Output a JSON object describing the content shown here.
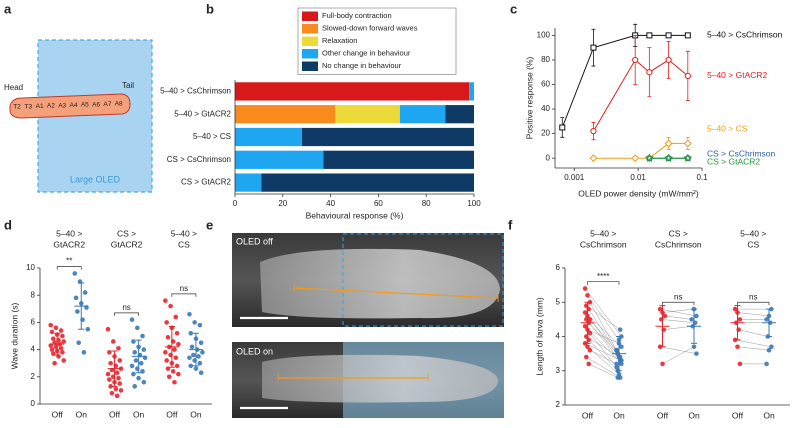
{
  "panel_labels": [
    "a",
    "b",
    "c",
    "d",
    "e",
    "f"
  ],
  "diagram": {
    "head": "Head",
    "tail": "Tail",
    "segments": [
      "T2",
      "T3",
      "A1",
      "A2",
      "A3",
      "A4",
      "A5",
      "A6",
      "A7",
      "A8"
    ],
    "oled_label": "Large OLED"
  },
  "images": {
    "top_label": "OLED off",
    "bottom_label": "OLED on"
  },
  "chart_data": [
    {
      "type": "stacked-barh",
      "categories": [
        "5–40 > CsChrimson",
        "5–40 > GtACR2",
        "5–40 > CS",
        "CS > CsChrimson",
        "CS > GtACR2"
      ],
      "series": [
        {
          "name": "Full-body contraction",
          "color": "#d7191c",
          "values": [
            98,
            0,
            0,
            0,
            0
          ]
        },
        {
          "name": "Slowed-down forward waves",
          "color": "#f98a1e",
          "values": [
            0,
            42,
            0,
            0,
            0
          ]
        },
        {
          "name": "Relaxation",
          "color": "#ecd93a",
          "values": [
            0,
            27,
            0,
            0,
            0
          ]
        },
        {
          "name": "Other change in behaviour",
          "color": "#1ea7f0",
          "values": [
            2,
            19,
            28,
            37,
            11
          ]
        },
        {
          "name": "No change in behaviour",
          "color": "#0f3a66",
          "values": [
            0,
            12,
            72,
            63,
            89
          ]
        }
      ],
      "xlim": [
        0,
        100
      ],
      "xticks": [
        0,
        20,
        40,
        60,
        80,
        100
      ],
      "xlabel": "Behavioural response (%)",
      "legend": "top"
    },
    {
      "type": "line",
      "xscale": "log",
      "xlabel": "OLED power density (mW/mm²)",
      "ylabel": "Positive response (%)",
      "xlim": [
        0.0005,
        0.1
      ],
      "xticks": [
        0.001,
        0.01,
        0.1
      ],
      "ylim": [
        -8,
        106
      ],
      "yticks": [
        0,
        20,
        40,
        60,
        80,
        100
      ],
      "series": [
        {
          "name": "5–40 > CsChrimson",
          "color": "#111111",
          "marker": "square",
          "x": [
            0.00065,
            0.002,
            0.009,
            0.015,
            0.03,
            0.06
          ],
          "values": [
            25,
            90,
            100,
            100,
            100,
            100
          ],
          "errors": [
            8,
            15,
            9,
            0,
            0,
            0
          ]
        },
        {
          "name": "5–40 > GtACR2",
          "color": "#e0201c",
          "marker": "circle",
          "x": [
            0.002,
            0.009,
            0.015,
            0.03,
            0.06
          ],
          "values": [
            22,
            80,
            70,
            80,
            67
          ],
          "errors": [
            7,
            20,
            20,
            15,
            20
          ]
        },
        {
          "name": "5–40 > CS",
          "color": "#f39a1b",
          "marker": "diamond",
          "x": [
            0.002,
            0.009,
            0.015,
            0.03,
            0.06
          ],
          "values": [
            0,
            0,
            0,
            12,
            12
          ],
          "errors": [
            0,
            0,
            0,
            5,
            5
          ]
        },
        {
          "name": "CS > CsChrimson",
          "color": "#2d5fa8",
          "marker": "circle",
          "x": [
            0.015,
            0.03,
            0.06
          ],
          "values": [
            0,
            0,
            0
          ],
          "errors": [
            0,
            0,
            0
          ]
        },
        {
          "name": "CS > GtACR2",
          "color": "#1f9a2e",
          "marker": "star",
          "x": [
            0.015,
            0.03,
            0.06
          ],
          "values": [
            0,
            0,
            0
          ],
          "errors": [
            0,
            0,
            0
          ]
        }
      ]
    },
    {
      "type": "strip",
      "ylabel": "Wave duration (s)",
      "ylim": [
        0,
        10
      ],
      "yticks": [
        0,
        2,
        4,
        6,
        8,
        10
      ],
      "groups": [
        {
          "title": [
            "5–40 >",
            "GtACR2"
          ],
          "significance": "**",
          "conditions": [
            {
              "name": "Off",
              "color": "#e8242b",
              "values": [
                5.8,
                5.6,
                5.4,
                5.3,
                5.1,
                5.0,
                4.8,
                4.7,
                4.6,
                4.5,
                4.4,
                4.3,
                4.2,
                4.1,
                4.0,
                3.9,
                3.8,
                3.7,
                3.5,
                3.2,
                3.0
              ],
              "mean": 4.4,
              "sd": 0.8
            },
            {
              "name": "On",
              "color": "#3a78b5",
              "values": [
                9.6,
                9.0,
                8.2,
                7.8,
                7.4,
                7.1,
                6.8,
                6.2,
                5.5,
                4.5,
                3.8
              ],
              "mean": 7.2,
              "sd": 1.7
            }
          ]
        },
        {
          "title": [
            "CS >",
            "GtACR2"
          ],
          "significance": "ns",
          "conditions": [
            {
              "name": "Off",
              "color": "#e8242b",
              "values": [
                5.5,
                4.6,
                4.1,
                3.8,
                3.5,
                3.2,
                3.0,
                2.8,
                2.6,
                2.5,
                2.3,
                2.2,
                2.0,
                1.9,
                1.8,
                1.6,
                1.5,
                1.3,
                1.1,
                1.0,
                0.8,
                0.6
              ],
              "mean": 2.6,
              "sd": 1.3
            },
            {
              "name": "On",
              "color": "#3a78b5",
              "values": [
                6.2,
                5.6,
                5.0,
                4.6,
                4.2,
                4.0,
                3.8,
                3.6,
                3.4,
                3.2,
                3.0,
                2.8,
                2.6,
                2.4,
                2.2,
                1.9,
                1.6,
                1.3
              ],
              "mean": 3.5,
              "sd": 1.2
            }
          ]
        },
        {
          "title": [
            "5–40 >",
            "CS"
          ],
          "significance": "ns",
          "conditions": [
            {
              "name": "Off",
              "color": "#e8242b",
              "values": [
                7.6,
                7.2,
                6.4,
                6.0,
                5.6,
                5.2,
                4.9,
                4.6,
                4.4,
                4.2,
                4.0,
                3.8,
                3.6,
                3.4,
                3.2,
                3.0,
                2.8,
                2.6,
                2.4,
                2.2,
                2.0,
                1.6
              ],
              "mean": 4.2,
              "sd": 1.5
            },
            {
              "name": "On",
              "color": "#3a78b5",
              "values": [
                6.6,
                6.0,
                5.8,
                5.2,
                4.8,
                4.5,
                4.2,
                4.0,
                3.8,
                3.6,
                3.5,
                3.4,
                3.2,
                3.0,
                2.8,
                2.6,
                2.3
              ],
              "mean": 4.0,
              "sd": 1.2
            }
          ]
        }
      ]
    },
    {
      "type": "paired",
      "ylabel": "Length of larva (mm)",
      "ylim": [
        2,
        6
      ],
      "yticks": [
        2,
        3,
        4,
        5,
        6
      ],
      "groups": [
        {
          "title": [
            "5–40 >",
            "CsChrimson"
          ],
          "significance": "****",
          "conditions": [
            {
              "name": "Off",
              "color": "#e8242b",
              "values": [
                5.4,
                5.2,
                5.0,
                4.9,
                4.8,
                4.7,
                4.6,
                4.5,
                4.5,
                4.4,
                4.3,
                4.2,
                4.1,
                4.0,
                3.9,
                3.8,
                3.7,
                3.6,
                3.4,
                3.2
              ],
              "mean": 4.4,
              "sd": 0.6
            },
            {
              "name": "On",
              "color": "#3a78b5",
              "values": [
                4.0,
                3.9,
                3.6,
                4.2,
                3.5,
                3.7,
                3.4,
                3.6,
                3.3,
                3.5,
                3.2,
                3.8,
                3.1,
                3.4,
                3.0,
                3.3,
                2.9,
                3.2,
                2.8,
                2.8
              ],
              "mean": 3.5,
              "sd": 0.5
            }
          ]
        },
        {
          "title": [
            "CS >",
            "CsChrimson"
          ],
          "significance": "ns",
          "conditions": [
            {
              "name": "Off",
              "color": "#e8242b",
              "values": [
                4.8,
                4.7,
                4.6,
                4.5,
                4.2,
                3.7,
                3.2
              ],
              "mean": 4.3,
              "sd": 0.6
            },
            {
              "name": "On",
              "color": "#3a78b5",
              "values": [
                4.6,
                4.8,
                4.5,
                4.4,
                4.3,
                3.5,
                3.7
              ],
              "mean": 4.3,
              "sd": 0.5
            }
          ]
        },
        {
          "title": [
            "5–40 >",
            "CS"
          ],
          "significance": "ns",
          "conditions": [
            {
              "name": "Off",
              "color": "#e8242b",
              "values": [
                4.8,
                4.7,
                4.5,
                4.4,
                4.2,
                3.9,
                3.7,
                3.2
              ],
              "mean": 4.4,
              "sd": 0.5
            },
            {
              "name": "On",
              "color": "#3a78b5",
              "values": [
                4.8,
                4.6,
                4.5,
                4.4,
                4.0,
                3.7,
                3.6,
                3.2
              ],
              "mean": 4.4,
              "sd": 0.4
            }
          ]
        }
      ]
    }
  ]
}
